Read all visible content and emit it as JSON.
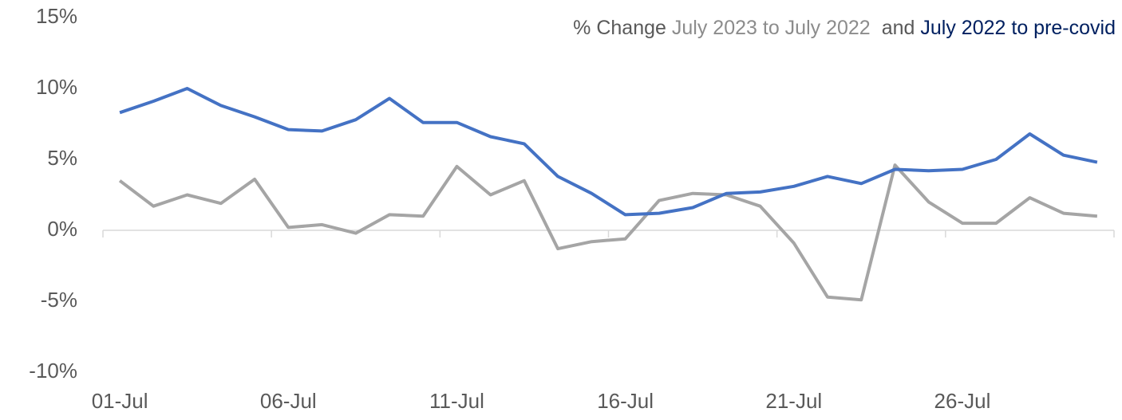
{
  "chart_data": {
    "type": "line",
    "title_segments": [
      {
        "text": "% Change",
        "color": "#595959"
      },
      {
        "text": "July 2023 to July 2022",
        "color": "#8c8c8c"
      },
      {
        "text": "and",
        "color": "#595959"
      },
      {
        "text": "July 2022 to pre-covid",
        "color": "#002060"
      }
    ],
    "categories": [
      "01-Jul",
      null,
      null,
      null,
      null,
      "06-Jul",
      null,
      null,
      null,
      null,
      "11-Jul",
      null,
      null,
      null,
      null,
      "16-Jul",
      null,
      null,
      null,
      null,
      "21-Jul",
      null,
      null,
      null,
      null,
      "26-Jul",
      null,
      null,
      null,
      null
    ],
    "series": [
      {
        "color": "#4472c4",
        "values": [
          8.3,
          9.1,
          10.0,
          8.8,
          8.0,
          7.1,
          7.0,
          7.8,
          9.3,
          7.6,
          7.6,
          6.6,
          6.1,
          3.8,
          2.6,
          1.1,
          1.2,
          1.6,
          2.6,
          2.7,
          3.1,
          3.8,
          3.3,
          4.3,
          4.2,
          4.3,
          5.0,
          6.8,
          5.3,
          4.8
        ]
      },
      {
        "color": "#a5a5a5",
        "values": [
          3.5,
          1.7,
          2.5,
          1.9,
          3.6,
          0.2,
          0.4,
          -0.2,
          1.1,
          1.0,
          4.5,
          2.5,
          3.5,
          -1.3,
          -0.8,
          -0.6,
          2.1,
          2.6,
          2.5,
          1.7,
          -0.9,
          -4.7,
          -4.9,
          4.6,
          2.0,
          0.5,
          0.5,
          2.3,
          1.2,
          1.0
        ]
      }
    ],
    "ylim": [
      -10,
      15
    ],
    "yticks": [
      {
        "value": -10,
        "label": "-10%"
      },
      {
        "value": -5,
        "label": "-5%"
      },
      {
        "value": 0,
        "label": "0%"
      },
      {
        "value": 5,
        "label": "5%"
      },
      {
        "value": 10,
        "label": "10%"
      },
      {
        "value": 15,
        "label": "15%"
      }
    ],
    "grid": false
  }
}
